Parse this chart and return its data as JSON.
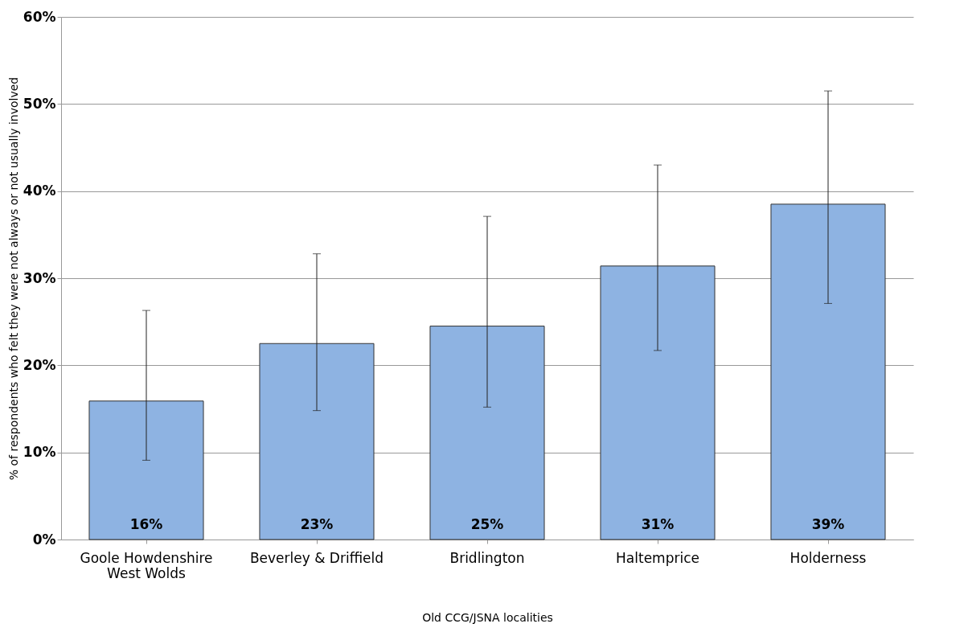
{
  "chart_data": {
    "type": "bar",
    "xlabel": "Old CCG/JSNA localities",
    "ylabel": "% of respondents who felt they were not always or not usually involved",
    "categories": [
      "Goole Howdenshire\nWest Wolds",
      "Beverley & Driffield",
      "Bridlington",
      "Haltemprice",
      "Holderness"
    ],
    "values": [
      15.9,
      22.5,
      24.5,
      31.4,
      38.5
    ],
    "value_labels": [
      "16%",
      "23%",
      "25%",
      "31%",
      "39%"
    ],
    "errors": [
      [
        9.1,
        26.3
      ],
      [
        14.8,
        32.8
      ],
      [
        15.2,
        37.1
      ],
      [
        21.7,
        43.0
      ],
      [
        27.1,
        51.5
      ]
    ],
    "color": "#8eb3e2",
    "ylim": [
      0,
      60
    ],
    "yticks": [
      {
        "value": 0,
        "label": "0%"
      },
      {
        "value": 10,
        "label": "10%"
      },
      {
        "value": 20,
        "label": "20%"
      },
      {
        "value": 30,
        "label": "30%"
      },
      {
        "value": 40,
        "label": "40%"
      },
      {
        "value": 50,
        "label": "50%"
      },
      {
        "value": 60,
        "label": "60%"
      }
    ],
    "grid": "y"
  }
}
